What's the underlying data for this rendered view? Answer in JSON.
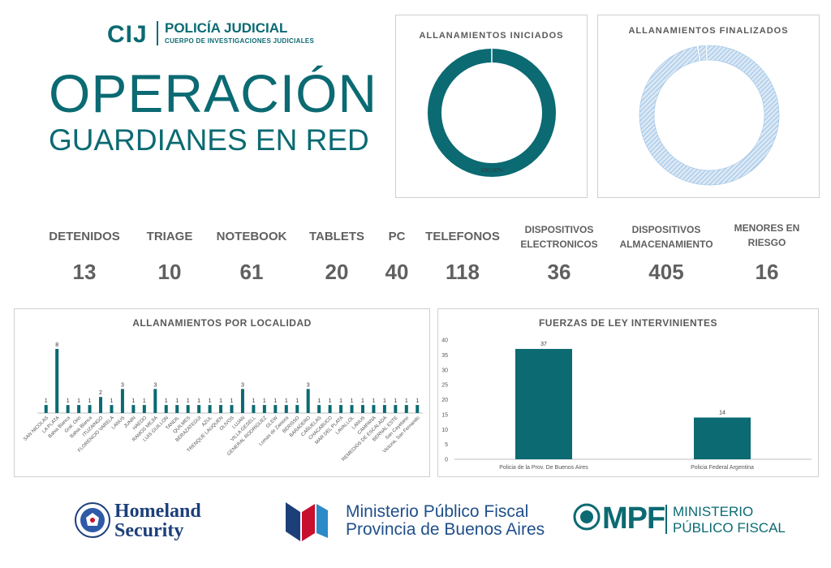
{
  "header": {
    "logo": "CIJ",
    "org": "POLICÍA JUDICIAL",
    "org_sub": "CUERPO DE INVESTIGACIONES JUDICIALES",
    "title_line1": "OPERACIÓN",
    "title_line2": "GUARDIANES EN RED"
  },
  "stats": [
    {
      "label": "DETENIDOS",
      "value": "13"
    },
    {
      "label": "TRIAGE",
      "value": "10"
    },
    {
      "label": "NOTEBOOK",
      "value": "61"
    },
    {
      "label": "TABLETS",
      "value": "20"
    },
    {
      "label": "PC",
      "value": "40"
    },
    {
      "label": "TELEFONOS",
      "value": "118"
    },
    {
      "label": "DISPOSITIVOS ELECTRONICOS",
      "value": "36"
    },
    {
      "label": "DISPOSITIVOS ALMACENAMIENTO",
      "value": "405"
    },
    {
      "label": "MENORES EN RIESGO",
      "value": "16"
    }
  ],
  "footer": {
    "homeland_line1": "Homeland",
    "homeland_line2": "Security",
    "mpf_prov_line1": "Ministerio Público Fiscal",
    "mpf_prov_line2": "Provincia de Buenos Aires",
    "mpf_logo": "MPF",
    "mpf_line1": "MINISTERIO",
    "mpf_line2": "PÚBLICO FISCAL"
  },
  "colors": {
    "accent": "#0b6a72",
    "finalizados": "#9cc3e6",
    "text": "#606060"
  },
  "chart_data": [
    {
      "type": "pie",
      "title": "ALLANAMIENTOS INICIADOS",
      "slices": [
        {
          "label": "100,00%",
          "value": 100
        }
      ],
      "color": "#0b6a72"
    },
    {
      "type": "pie",
      "title": "ALLANAMIENTOS FINALIZADOS",
      "slices": [
        {
          "label": "",
          "value": 98
        },
        {
          "label": "",
          "value": 2
        }
      ],
      "color": "#9cc3e6"
    },
    {
      "type": "bar",
      "title": "ALLANAMIENTOS POR LOCALIDAD",
      "categories": [
        "SAN NICOLAS",
        "LA PLATA",
        "Bahia Blanca",
        "Gral. Orin",
        "Bahia Blanca",
        "ITUZAINGO",
        "FLORENCIO VARELA",
        "LANUS",
        "JUNIN",
        "HAEDO",
        "RAMOS MEJIA",
        "LUIS GUILLON",
        "TANDIL",
        "QUILMES",
        "BERAZATEGUI",
        "AZUL",
        "TRENQUE LAUQUEN",
        "OLIVOS",
        "LUJAN",
        "VILLA GESELL",
        "GENERAL RODRIGUEZ",
        "GLEW",
        "Lomas de Zamora",
        "BERISSO",
        "BARADERO",
        "CAÑUELAS",
        "CHACABUCO",
        "MAR DEL PLATA",
        "LAVALLOL",
        "LANUS",
        "CAMPANA",
        "REMEDIOS DE ESCALADA",
        "BERNAL ESTE",
        "San Cayetano",
        "Victoria, San Fernando"
      ],
      "values": [
        1,
        8,
        1,
        1,
        1,
        2,
        1,
        3,
        1,
        1,
        3,
        1,
        1,
        1,
        1,
        1,
        1,
        1,
        3,
        1,
        1,
        1,
        1,
        1,
        3,
        1,
        1,
        1,
        1,
        1,
        1,
        1,
        1,
        1,
        1
      ],
      "ylim": [
        0,
        9
      ]
    },
    {
      "type": "bar",
      "title": "FUERZAS DE LEY INTERVINIENTES",
      "categories": [
        "Policia de la Prov. De Buenos Aires",
        "Policia Federal Argentina"
      ],
      "values": [
        37,
        14
      ],
      "yticks": [
        "0",
        "5",
        "10",
        "15",
        "20",
        "25",
        "30",
        "35",
        "40"
      ],
      "ylim": [
        0,
        40
      ],
      "grid": false
    }
  ]
}
